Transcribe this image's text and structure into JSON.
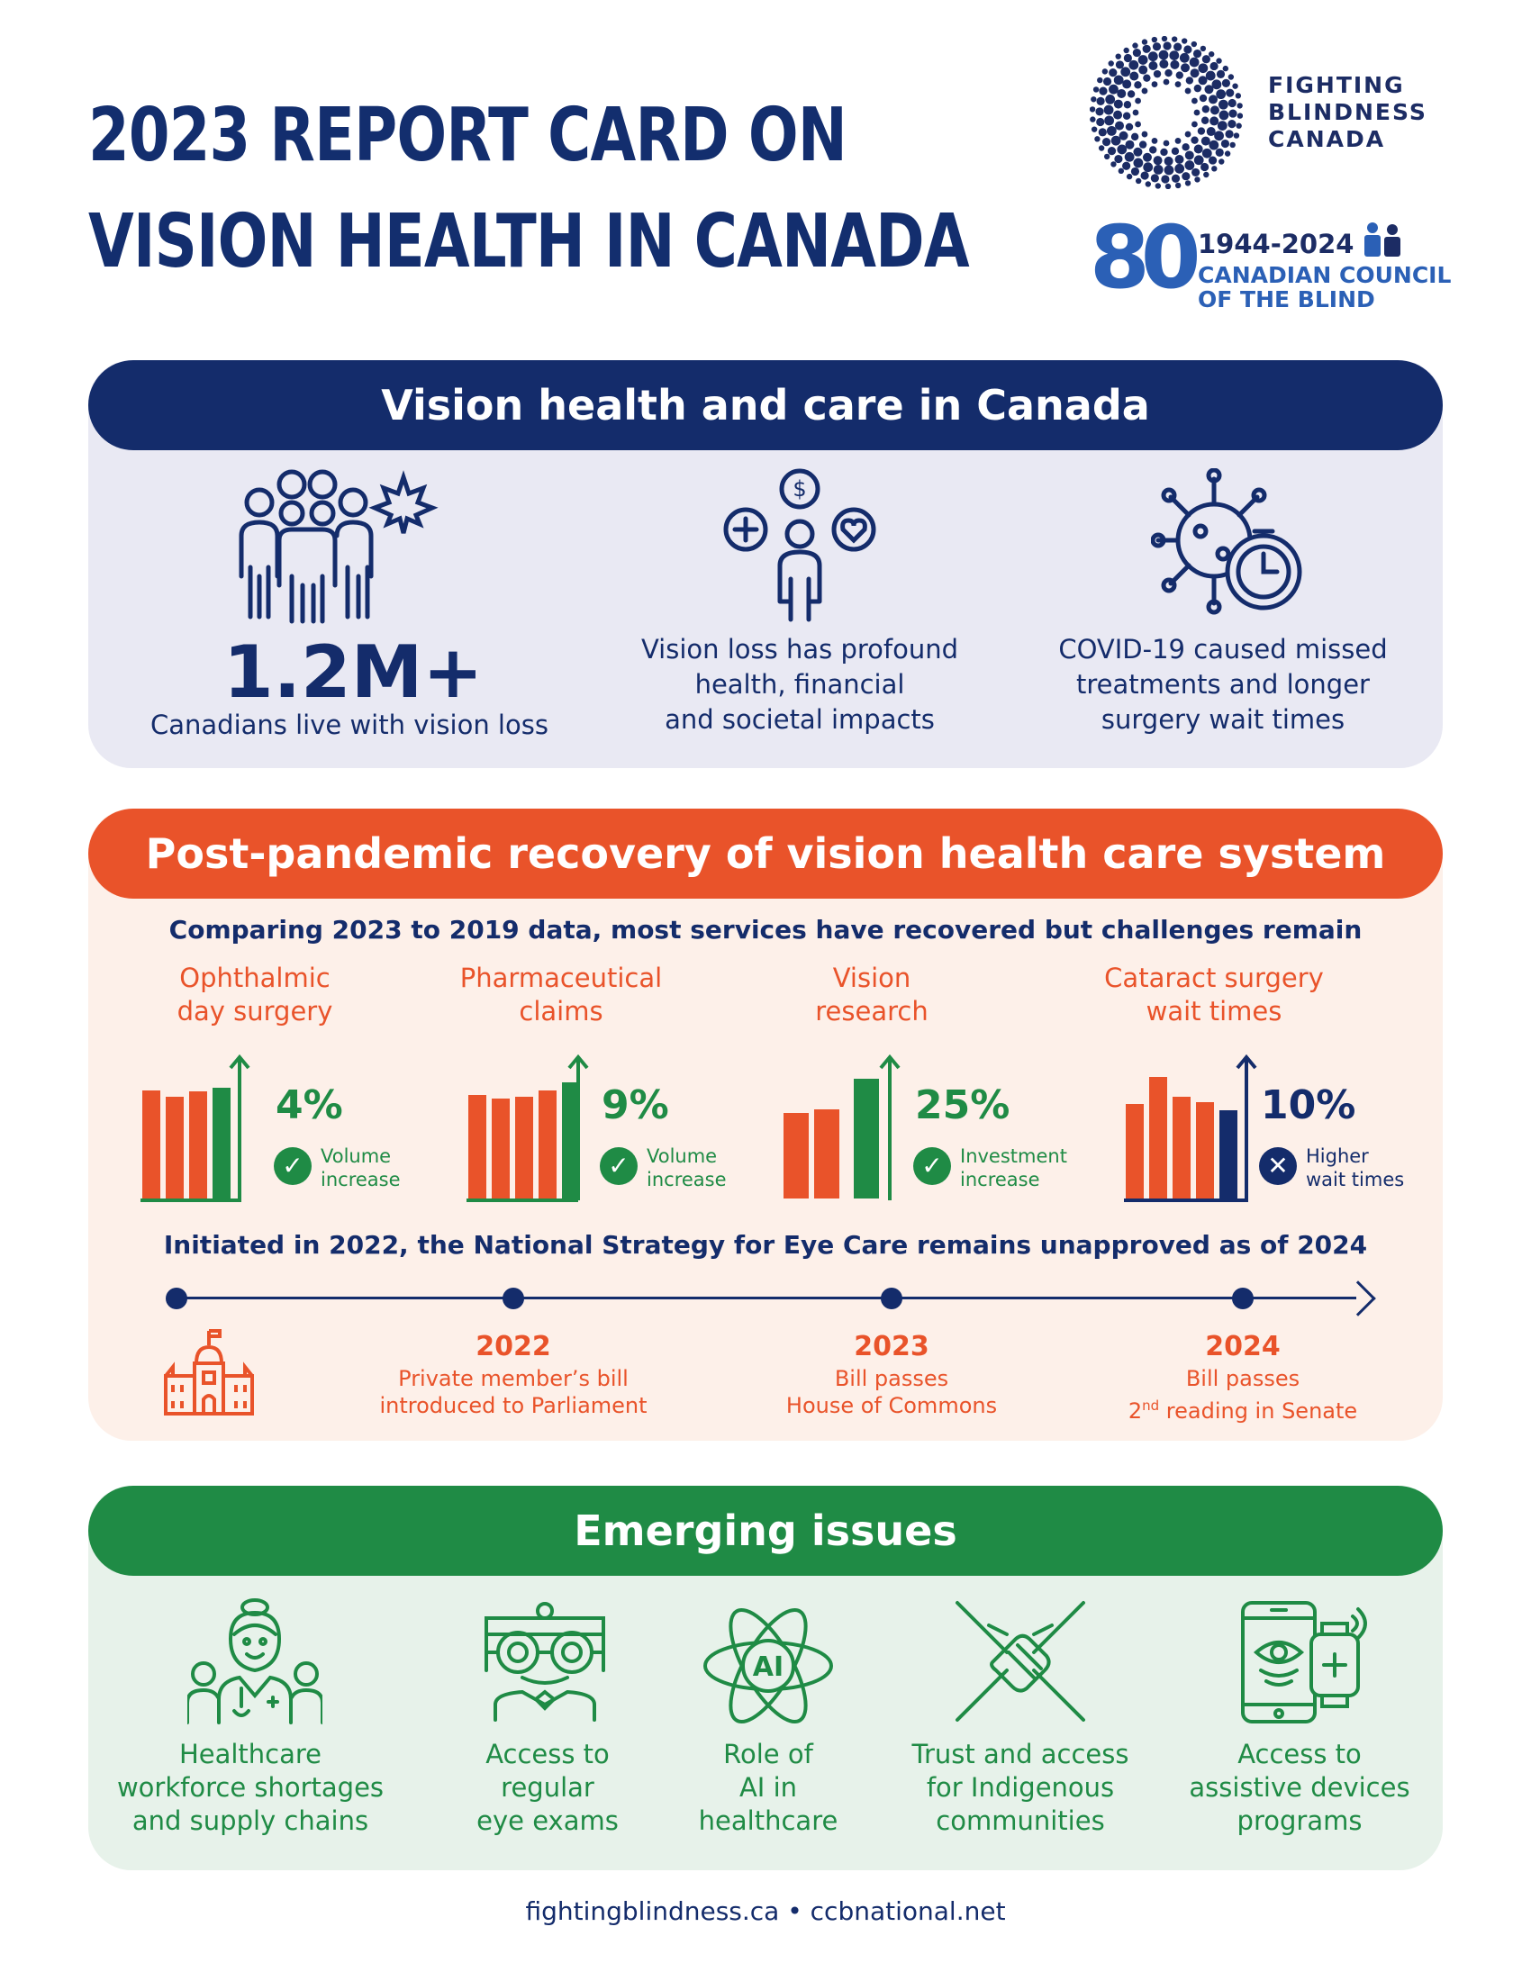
{
  "header": {
    "title_line1": "2023 REPORT CARD ON",
    "title_line2": "VISION HEALTH IN CANADA",
    "org1_line1": "FIGHTING",
    "org1_line2": "BLINDNESS",
    "org1_line3": "CANADA",
    "org2_badge": "80",
    "org2_years": "1944-2024",
    "org2_line1": "CANADIAN COUNCIL",
    "org2_line2": "OF THE BLIND"
  },
  "section1": {
    "heading": "Vision health and care in Canada",
    "stat_value": "1.2M+",
    "stat_label": "Canadians live with vision loss",
    "item2_line1": "Vision loss has profound",
    "item2_line2": "health, financial",
    "item2_line3": "and societal impacts",
    "item3_line1": "COVID-19 caused missed",
    "item3_line2": "treatments and longer",
    "item3_line3": "surgery wait times"
  },
  "section2": {
    "heading": "Post-pandemic recovery of vision health care system",
    "subheading": "Comparing 2023 to 2019 data, most services have recovered but challenges remain",
    "metrics": [
      {
        "title_line1": "Ophthalmic",
        "title_line2": "day surgery",
        "value": "4%",
        "label_line1": "Volume",
        "label_line2": "increase",
        "status": "check"
      },
      {
        "title_line1": "Pharmaceutical",
        "title_line2": "claims",
        "value": "9%",
        "label_line1": "Volume",
        "label_line2": "increase",
        "status": "check"
      },
      {
        "title_line1": "Vision",
        "title_line2": "research",
        "value": "25%",
        "label_line1": "Investment",
        "label_line2": "increase",
        "status": "check"
      },
      {
        "title_line1": "Cataract surgery",
        "title_line2": "wait times",
        "value": "10%",
        "label_line1": "Higher",
        "label_line2": "wait times",
        "status": "cross"
      }
    ],
    "timeline_heading": "Initiated in 2022, the National Strategy for Eye Care remains unapproved as of 2024",
    "timeline": [
      {
        "year": "2022",
        "line1": "Private member’s bill",
        "line2": "introduced to Parliament"
      },
      {
        "year": "2023",
        "line1": "Bill passes",
        "line2": "House of Commons"
      },
      {
        "year": "2024",
        "line1": "Bill passes",
        "line2_prefix": "2",
        "line2_sup": "nd",
        "line2_rest": " reading in Senate"
      }
    ],
    "colors": {
      "orange": "#e9532a",
      "green": "#1f8b45",
      "navy": "#142c6b"
    }
  },
  "section3": {
    "heading": "Emerging issues",
    "issues": [
      {
        "icon": "healthcare-workers-icon",
        "line1": "Healthcare",
        "line2": "workforce shortages",
        "line3": "and supply chains"
      },
      {
        "icon": "eye-exam-icon",
        "line1": "Access to",
        "line2": "regular",
        "line3": "eye exams"
      },
      {
        "icon": "ai-atom-icon",
        "ai_text": "AI",
        "line1": "Role of",
        "line2": "AI in",
        "line3": "healthcare"
      },
      {
        "icon": "handshake-icon",
        "line1": "Trust and access",
        "line2": "for Indigenous",
        "line3": "communities"
      },
      {
        "icon": "assistive-devices-icon",
        "line1": "Access to",
        "line2": "assistive devices",
        "line3": "programs"
      }
    ]
  },
  "footer": {
    "text": "fightingblindness.ca • ccbnational.net"
  }
}
